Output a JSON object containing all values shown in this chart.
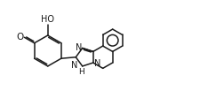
{
  "bg_color": "#ffffff",
  "line_color": "#1a1a1a",
  "line_width": 1.1,
  "font_size": 6.5,
  "fig_width": 2.43,
  "fig_height": 1.11,
  "dpi": 100,
  "xlim": [
    0,
    24
  ],
  "ylim": [
    0,
    11
  ]
}
